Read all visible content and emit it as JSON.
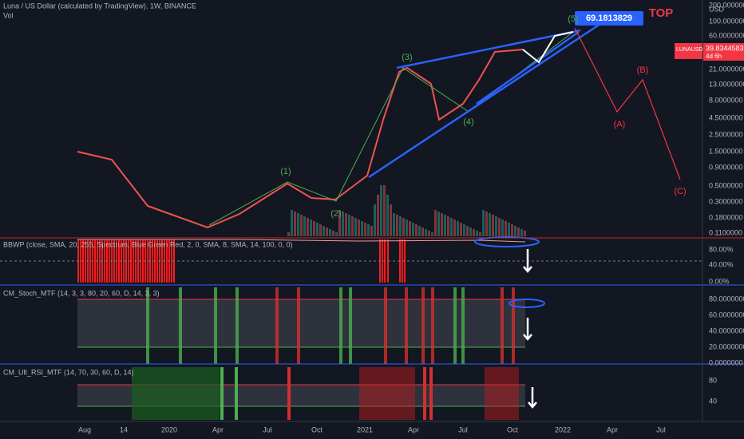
{
  "header": {
    "title": "Luna / US Dollar (calculated by TradingView), 1W, BINANCE",
    "volume": "Vol"
  },
  "price_axis": {
    "unit": "USD",
    "labels": [
      "200.0000000",
      "100.0000000",
      "60.0000000",
      "21.0000000",
      "13.0000000",
      "8.0000000",
      "4.5000000",
      "2.5000000",
      "1.5000000",
      "0.9000000",
      "0.5000000",
      "0.3000000",
      "0.1800000",
      "0.1100000"
    ]
  },
  "price_tag": {
    "symbol": "LUNAUSD",
    "price": "39.8344583",
    "countdown": "4d 6h"
  },
  "annotations": {
    "target": "69.1813829",
    "top": "TOP",
    "waves": [
      "(1)",
      "(2)",
      "(3)",
      "(4)",
      "(5)",
      "(A)",
      "(B)",
      "(C)"
    ]
  },
  "indicators": [
    {
      "title": "BBWP (close, SMA, 20, 255, Spectrum, Blue Green Red, 2, 0, SMA, 8, SMA, 14, 100, 0, 0)",
      "axis": [
        "80.00%",
        "40.00%",
        "0.00%"
      ]
    },
    {
      "title": "CM_Stoch_MTF (14, 3, 3, 80, 20, 60, D, 14, 3, 3)",
      "axis": [
        "80.0000000",
        "60.0000000",
        "40.0000000",
        "20.0000000",
        "0.0000000"
      ]
    },
    {
      "title": "CM_Ult_RSI_MTF (14, 70, 30, 60, D, 14)",
      "axis": [
        "80",
        "40"
      ]
    }
  ],
  "time_axis": [
    "Aug",
    "14",
    "2020",
    "Apr",
    "Jul",
    "Oct",
    "2021",
    "Apr",
    "Jul",
    "Oct",
    "2022",
    "Apr",
    "Jul"
  ]
}
